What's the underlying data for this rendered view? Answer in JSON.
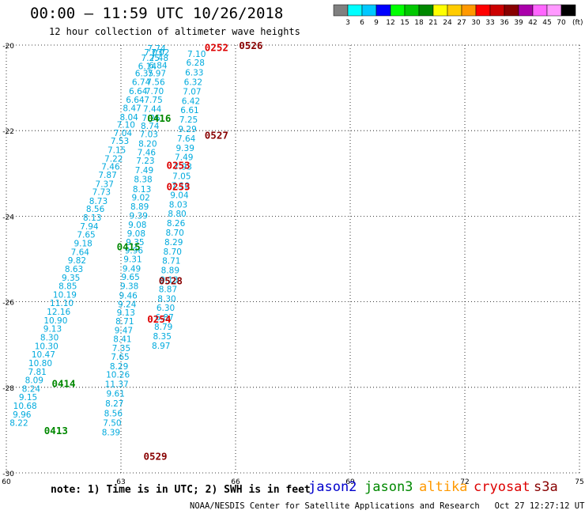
{
  "header": {
    "title": "00:00 – 11:59 UTC 10/26/2018",
    "subtitle": "12 hour collection of altimeter wave heights"
  },
  "footer": {
    "note": "note: 1) Time is in UTC; 2) SWH is in feet",
    "credit": "NOAA/NESDIS Center for Satellite Applications and Research   Oct 27 12:27:12 UTC 2018"
  },
  "satellites": [
    {
      "name": "jason2",
      "color": "#0000cc"
    },
    {
      "name": "jason3",
      "color": "#008800"
    },
    {
      "name": "altika",
      "color": "#ff9900"
    },
    {
      "name": "cryosat",
      "color": "#dd0000"
    },
    {
      "name": "s3a",
      "color": "#880000"
    }
  ],
  "color_scale": {
    "unit": "(ft)",
    "labels": [
      "3",
      "6",
      "9",
      "12",
      "15",
      "18",
      "21",
      "24",
      "27",
      "30",
      "33",
      "36",
      "39",
      "42",
      "45",
      "70"
    ],
    "colors": [
      "#808080",
      "#00ffff",
      "#00c8ff",
      "#0000ff",
      "#00ff00",
      "#00c800",
      "#008800",
      "#ffff00",
      "#ffcc00",
      "#ff9900",
      "#ff0000",
      "#cc0000",
      "#880000",
      "#aa00aa",
      "#ff66ff",
      "#ff99ff",
      "#000000"
    ]
  },
  "chart_data": {
    "type": "scatter",
    "title": "00:00 – 11:59 UTC 10/26/2018",
    "xlim": [
      60,
      75
    ],
    "ylim": [
      -30,
      -20
    ],
    "xticks": [
      60,
      63,
      66,
      69,
      72,
      75
    ],
    "yticks": [
      -20,
      -22,
      -24,
      -26,
      -28,
      -30
    ],
    "grid": true,
    "tracks": [
      {
        "satellite": "jason2",
        "color": "#00aadd",
        "points": [
          [
            63.93,
            -20.07,
            "7.74"
          ],
          [
            63.85,
            -20.17,
            "7.03"
          ],
          [
            63.77,
            -20.3,
            "7.25"
          ],
          [
            63.69,
            -20.49,
            "6.14"
          ],
          [
            63.61,
            -20.66,
            "6.35"
          ],
          [
            63.53,
            -20.86,
            "6.74"
          ],
          [
            63.45,
            -21.07,
            "6.64"
          ],
          [
            63.37,
            -21.28,
            "6.64"
          ],
          [
            63.29,
            -21.47,
            "8.47"
          ],
          [
            63.21,
            -21.68,
            "8.04"
          ],
          [
            63.13,
            -21.86,
            "7.10"
          ],
          [
            63.05,
            -22.05,
            "7.04"
          ],
          [
            62.97,
            -22.24,
            "7.53"
          ],
          [
            62.89,
            -22.45,
            "7.15"
          ],
          [
            62.81,
            -22.65,
            "7.22"
          ],
          [
            62.73,
            -22.84,
            "7.46"
          ],
          [
            62.65,
            -23.03,
            "7.87"
          ],
          [
            62.57,
            -23.24,
            "7.37"
          ],
          [
            62.49,
            -23.43,
            "7.73"
          ],
          [
            62.41,
            -23.64,
            "8.73"
          ],
          [
            62.33,
            -23.83,
            "8.56"
          ],
          [
            62.25,
            -24.03,
            "8.13"
          ],
          [
            62.17,
            -24.23,
            "7.94"
          ],
          [
            62.09,
            -24.43,
            "7.65"
          ],
          [
            62.01,
            -24.63,
            "9.18"
          ],
          [
            61.93,
            -24.83,
            "7.64"
          ],
          [
            61.85,
            -25.03,
            "9.82"
          ],
          [
            61.77,
            -25.23,
            "8.63"
          ],
          [
            61.69,
            -25.43,
            "9.35"
          ],
          [
            61.61,
            -25.63,
            "8.85"
          ],
          [
            61.53,
            -25.83,
            "10.19"
          ],
          [
            61.45,
            -26.03,
            "11.10"
          ],
          [
            61.37,
            -26.23,
            "12.16"
          ],
          [
            61.29,
            -26.43,
            "10.90"
          ],
          [
            61.21,
            -26.63,
            "9.13"
          ],
          [
            61.13,
            -26.83,
            "8.30"
          ],
          [
            61.05,
            -27.03,
            "10.30"
          ],
          [
            60.97,
            -27.23,
            "10.47"
          ],
          [
            60.89,
            -27.43,
            "10.80"
          ],
          [
            60.81,
            -27.63,
            "7.81"
          ],
          [
            60.73,
            -27.83,
            "8.09"
          ],
          [
            60.65,
            -28.03,
            "8.24"
          ],
          [
            60.57,
            -28.23,
            "9.15"
          ],
          [
            60.49,
            -28.43,
            "10.68"
          ],
          [
            60.41,
            -28.63,
            "9.96"
          ],
          [
            60.33,
            -28.83,
            "8.22"
          ]
        ]
      },
      {
        "satellite": "jason2",
        "color": "#00aadd",
        "points": [
          [
            64.03,
            -20.17,
            "7.02"
          ],
          [
            64.0,
            -20.3,
            "7.48"
          ],
          [
            63.97,
            -20.47,
            "6.84"
          ],
          [
            63.94,
            -20.66,
            "7.97"
          ],
          [
            63.91,
            -20.86,
            "7.56"
          ],
          [
            63.88,
            -21.07,
            "7.70"
          ],
          [
            63.85,
            -21.28,
            "7.75"
          ],
          [
            63.82,
            -21.49,
            "7.44"
          ],
          [
            63.79,
            -21.7,
            "7.26"
          ],
          [
            63.76,
            -21.89,
            "8.74"
          ],
          [
            63.73,
            -22.08,
            "7.03"
          ],
          [
            63.7,
            -22.3,
            "8.20"
          ],
          [
            63.67,
            -22.5,
            "7.46"
          ],
          [
            63.64,
            -22.7,
            "7.23"
          ],
          [
            63.61,
            -22.92,
            "7.49"
          ],
          [
            63.58,
            -23.13,
            "8.38"
          ],
          [
            63.55,
            -23.36,
            "8.13"
          ],
          [
            63.52,
            -23.56,
            "9.02"
          ],
          [
            63.49,
            -23.77,
            "8.89"
          ],
          [
            63.46,
            -23.98,
            "9.39"
          ],
          [
            63.43,
            -24.2,
            "9.08"
          ],
          [
            63.4,
            -24.4,
            "9.08"
          ],
          [
            63.37,
            -24.6,
            "9.35"
          ],
          [
            63.34,
            -24.8,
            "9.96"
          ],
          [
            63.31,
            -25.0,
            "9.31"
          ],
          [
            63.28,
            -25.22,
            "9.49"
          ],
          [
            63.25,
            -25.42,
            "9.65"
          ],
          [
            63.22,
            -25.63,
            "9.38"
          ],
          [
            63.19,
            -25.85,
            "9.46"
          ],
          [
            63.16,
            -26.05,
            "9.24"
          ],
          [
            63.13,
            -26.25,
            "9.13"
          ],
          [
            63.1,
            -26.45,
            "8.71"
          ],
          [
            63.07,
            -26.66,
            "9.47"
          ],
          [
            63.04,
            -26.87,
            "8.41"
          ],
          [
            63.01,
            -27.08,
            "7.35"
          ],
          [
            62.98,
            -27.28,
            "7.65"
          ],
          [
            62.95,
            -27.5,
            "8.29"
          ],
          [
            62.92,
            -27.7,
            "10.26"
          ],
          [
            62.89,
            -27.92,
            "11.37"
          ],
          [
            62.86,
            -28.14,
            "9.61"
          ],
          [
            62.83,
            -28.37,
            "8.27"
          ],
          [
            62.8,
            -28.6,
            "8.56"
          ],
          [
            62.77,
            -28.83,
            "7.50"
          ],
          [
            62.74,
            -29.05,
            "8.39"
          ]
        ]
      },
      {
        "satellite": "jason2",
        "color": "#00aadd",
        "points": [
          [
            64.98,
            -20.2,
            "7.10"
          ],
          [
            64.95,
            -20.41,
            "6.28"
          ],
          [
            64.92,
            -20.64,
            "6.33"
          ],
          [
            64.89,
            -20.86,
            "6.32"
          ],
          [
            64.86,
            -21.08,
            "7.07"
          ],
          [
            64.83,
            -21.3,
            "6.42"
          ],
          [
            64.8,
            -21.52,
            "6.61"
          ],
          [
            64.77,
            -21.74,
            "7.25"
          ],
          [
            64.74,
            -21.96,
            "9.29"
          ],
          [
            64.71,
            -22.18,
            "7.64"
          ],
          [
            64.68,
            -22.4,
            "9.39"
          ],
          [
            64.65,
            -22.62,
            "7.49"
          ],
          [
            64.62,
            -22.84,
            "7.93"
          ],
          [
            64.59,
            -23.06,
            "7.05"
          ],
          [
            64.56,
            -23.28,
            "7.10"
          ],
          [
            64.53,
            -23.5,
            "9.04"
          ],
          [
            64.5,
            -23.72,
            "8.03"
          ],
          [
            64.47,
            -23.94,
            "8.80"
          ],
          [
            64.44,
            -24.16,
            "8.26"
          ],
          [
            64.41,
            -24.38,
            "8.70"
          ],
          [
            64.38,
            -24.6,
            "8.29"
          ],
          [
            64.35,
            -24.82,
            "8.70"
          ],
          [
            64.32,
            -25.04,
            "8.71"
          ],
          [
            64.29,
            -25.26,
            "8.89"
          ],
          [
            64.26,
            -25.48,
            "9.13"
          ],
          [
            64.23,
            -25.7,
            "8.87"
          ],
          [
            64.2,
            -25.92,
            "8.30"
          ],
          [
            64.17,
            -26.14,
            "6.30"
          ],
          [
            64.14,
            -26.36,
            "6.87"
          ],
          [
            64.11,
            -26.58,
            "8.79"
          ],
          [
            64.08,
            -26.8,
            "8.35"
          ],
          [
            64.05,
            -27.02,
            "8.97"
          ]
        ]
      }
    ],
    "time_labels": [
      {
        "x": 66.4,
        "y": -20.0,
        "text": "0526",
        "color": "#880000"
      },
      {
        "x": 65.5,
        "y": -20.05,
        "text": "0252",
        "color": "#dd0000"
      },
      {
        "x": 64.0,
        "y": -21.7,
        "text": "0416",
        "color": "#008800"
      },
      {
        "x": 65.5,
        "y": -22.1,
        "text": "0527",
        "color": "#880000"
      },
      {
        "x": 64.5,
        "y": -22.8,
        "text": "0253",
        "color": "#dd0000"
      },
      {
        "x": 64.5,
        "y": -23.3,
        "text": "0253",
        "color": "#dd0000"
      },
      {
        "x": 63.2,
        "y": -24.7,
        "text": "0415",
        "color": "#008800"
      },
      {
        "x": 64.3,
        "y": -25.5,
        "text": "0528",
        "color": "#880000"
      },
      {
        "x": 64.0,
        "y": -26.4,
        "text": "0254",
        "color": "#dd0000"
      },
      {
        "x": 61.5,
        "y": -27.9,
        "text": "0414",
        "color": "#008800"
      },
      {
        "x": 61.3,
        "y": -29.0,
        "text": "0413",
        "color": "#008800"
      },
      {
        "x": 63.9,
        "y": -29.6,
        "text": "0529",
        "color": "#880000"
      }
    ]
  }
}
